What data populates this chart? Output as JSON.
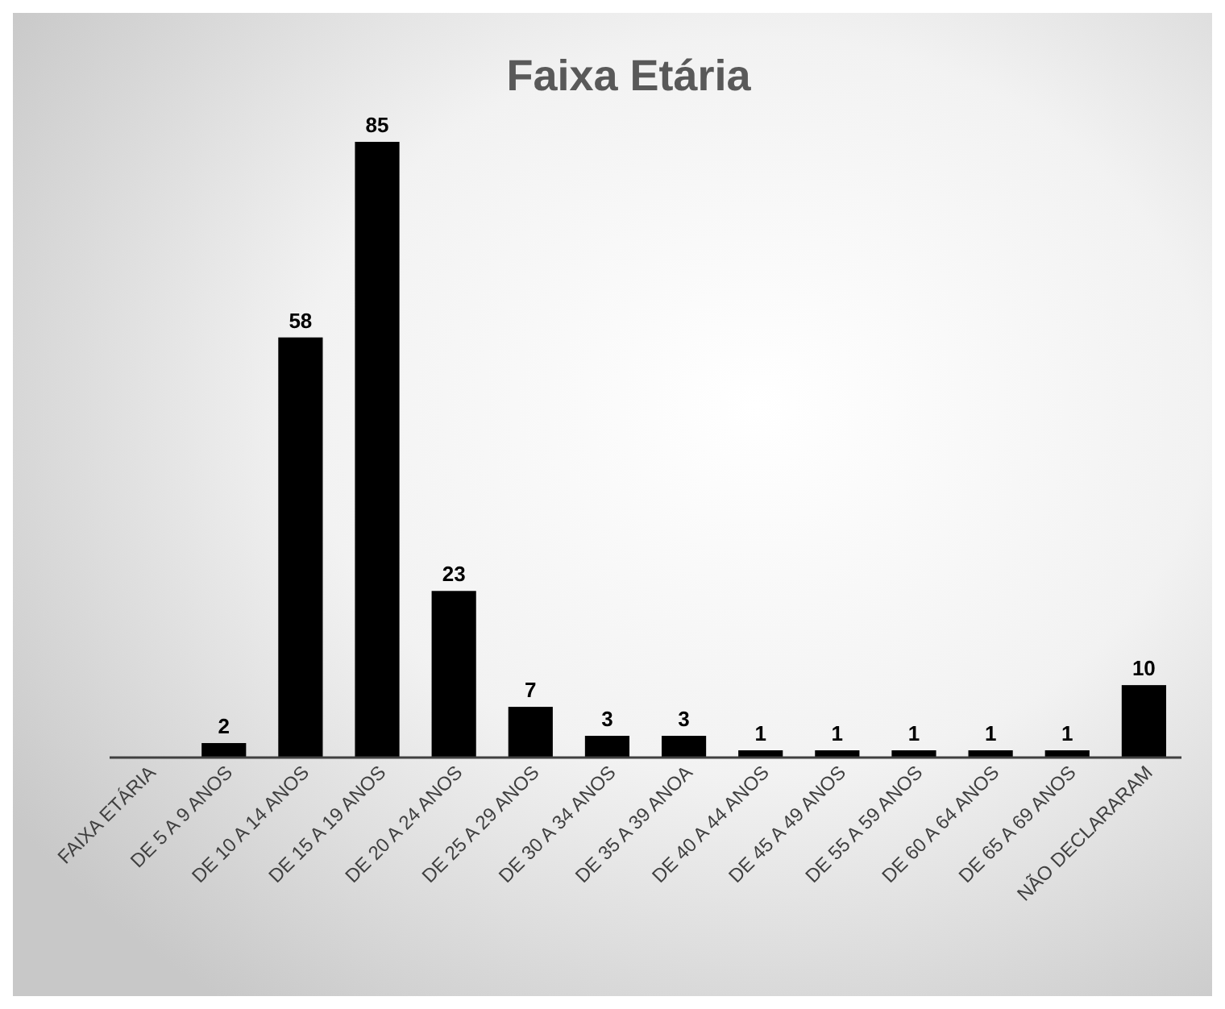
{
  "chart_data": {
    "type": "bar",
    "title": "Faixa Etária",
    "categories": [
      "FAIXA ETÁRIA",
      "DE 5 A 9 ANOS",
      "DE 10 A 14 ANOS",
      "DE 15 A 19 ANOS",
      "DE 20 A 24 ANOS",
      "DE 25 A 29 ANOS",
      "DE 30 A 34 ANOS",
      "DE 35 A 39 ANOA",
      "DE 40 A 44 ANOS",
      "DE 45 A 49 ANOS",
      "DE 55 A 59 ANOS",
      "DE 60 A 64 ANOS",
      "DE 65 A 69 ANOS",
      "NÃO DECLARARAM"
    ],
    "values": [
      null,
      2,
      58,
      85,
      23,
      7,
      3,
      3,
      1,
      1,
      1,
      1,
      1,
      10
    ],
    "color": "#000000",
    "data_labels": true
  }
}
